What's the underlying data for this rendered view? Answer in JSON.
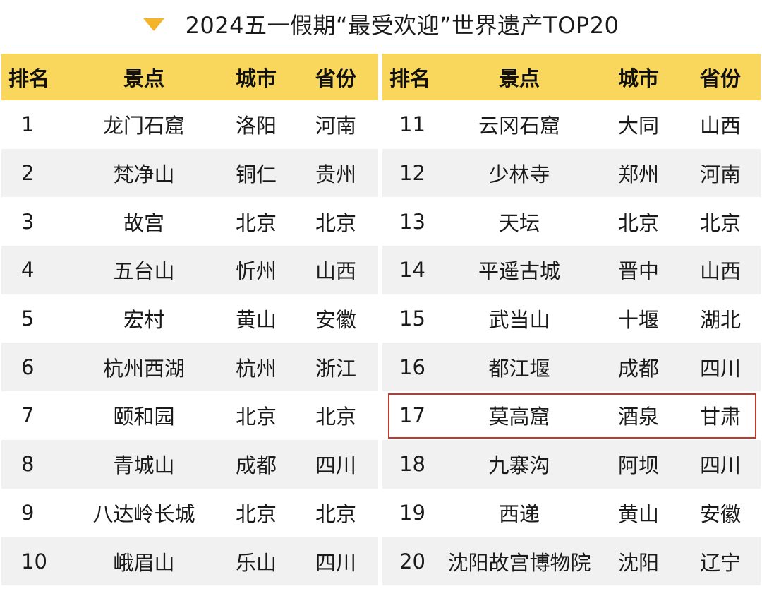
{
  "title": "2024五一假期“最受欢迎”世界遗产TOP20",
  "headers": {
    "rank": "排名",
    "site": "景点",
    "city": "城市",
    "province": "省份"
  },
  "rows": [
    {
      "rank": "1",
      "site": "龙门石窟",
      "city": "洛阳",
      "province": "河南"
    },
    {
      "rank": "2",
      "site": "梵净山",
      "city": "铜仁",
      "province": "贵州"
    },
    {
      "rank": "3",
      "site": "故宫",
      "city": "北京",
      "province": "北京"
    },
    {
      "rank": "4",
      "site": "五台山",
      "city": "忻州",
      "province": "山西"
    },
    {
      "rank": "5",
      "site": "宏村",
      "city": "黄山",
      "province": "安徽"
    },
    {
      "rank": "6",
      "site": "杭州西湖",
      "city": "杭州",
      "province": "浙江"
    },
    {
      "rank": "7",
      "site": "颐和园",
      "city": "北京",
      "province": "北京"
    },
    {
      "rank": "8",
      "site": "青城山",
      "city": "成都",
      "province": "四川"
    },
    {
      "rank": "9",
      "site": "八达岭长城",
      "city": "北京",
      "province": "北京"
    },
    {
      "rank": "10",
      "site": "峨眉山",
      "city": "乐山",
      "province": "四川"
    },
    {
      "rank": "11",
      "site": "云冈石窟",
      "city": "大同",
      "province": "山西"
    },
    {
      "rank": "12",
      "site": "少林寺",
      "city": "郑州",
      "province": "河南"
    },
    {
      "rank": "13",
      "site": "天坛",
      "city": "北京",
      "province": "北京"
    },
    {
      "rank": "14",
      "site": "平遥古城",
      "city": "晋中",
      "province": "山西"
    },
    {
      "rank": "15",
      "site": "武当山",
      "city": "十堰",
      "province": "湖北"
    },
    {
      "rank": "16",
      "site": "都江堰",
      "city": "成都",
      "province": "四川"
    },
    {
      "rank": "17",
      "site": "莫高窟",
      "city": "酒泉",
      "province": "甘肃"
    },
    {
      "rank": "18",
      "site": "九寨沟",
      "city": "阿坝",
      "province": "四川"
    },
    {
      "rank": "19",
      "site": "西递",
      "city": "黄山",
      "province": "安徽"
    },
    {
      "rank": "20",
      "site": "沈阳故宫博物院",
      "city": "沈阳",
      "province": "辽宁"
    }
  ],
  "highlight_rank": "17",
  "colors": {
    "header_bg": "#f9d65c",
    "accent": "#f4b42a",
    "highlight_border": "#c0392b",
    "stripe": "#f1f1f1"
  }
}
